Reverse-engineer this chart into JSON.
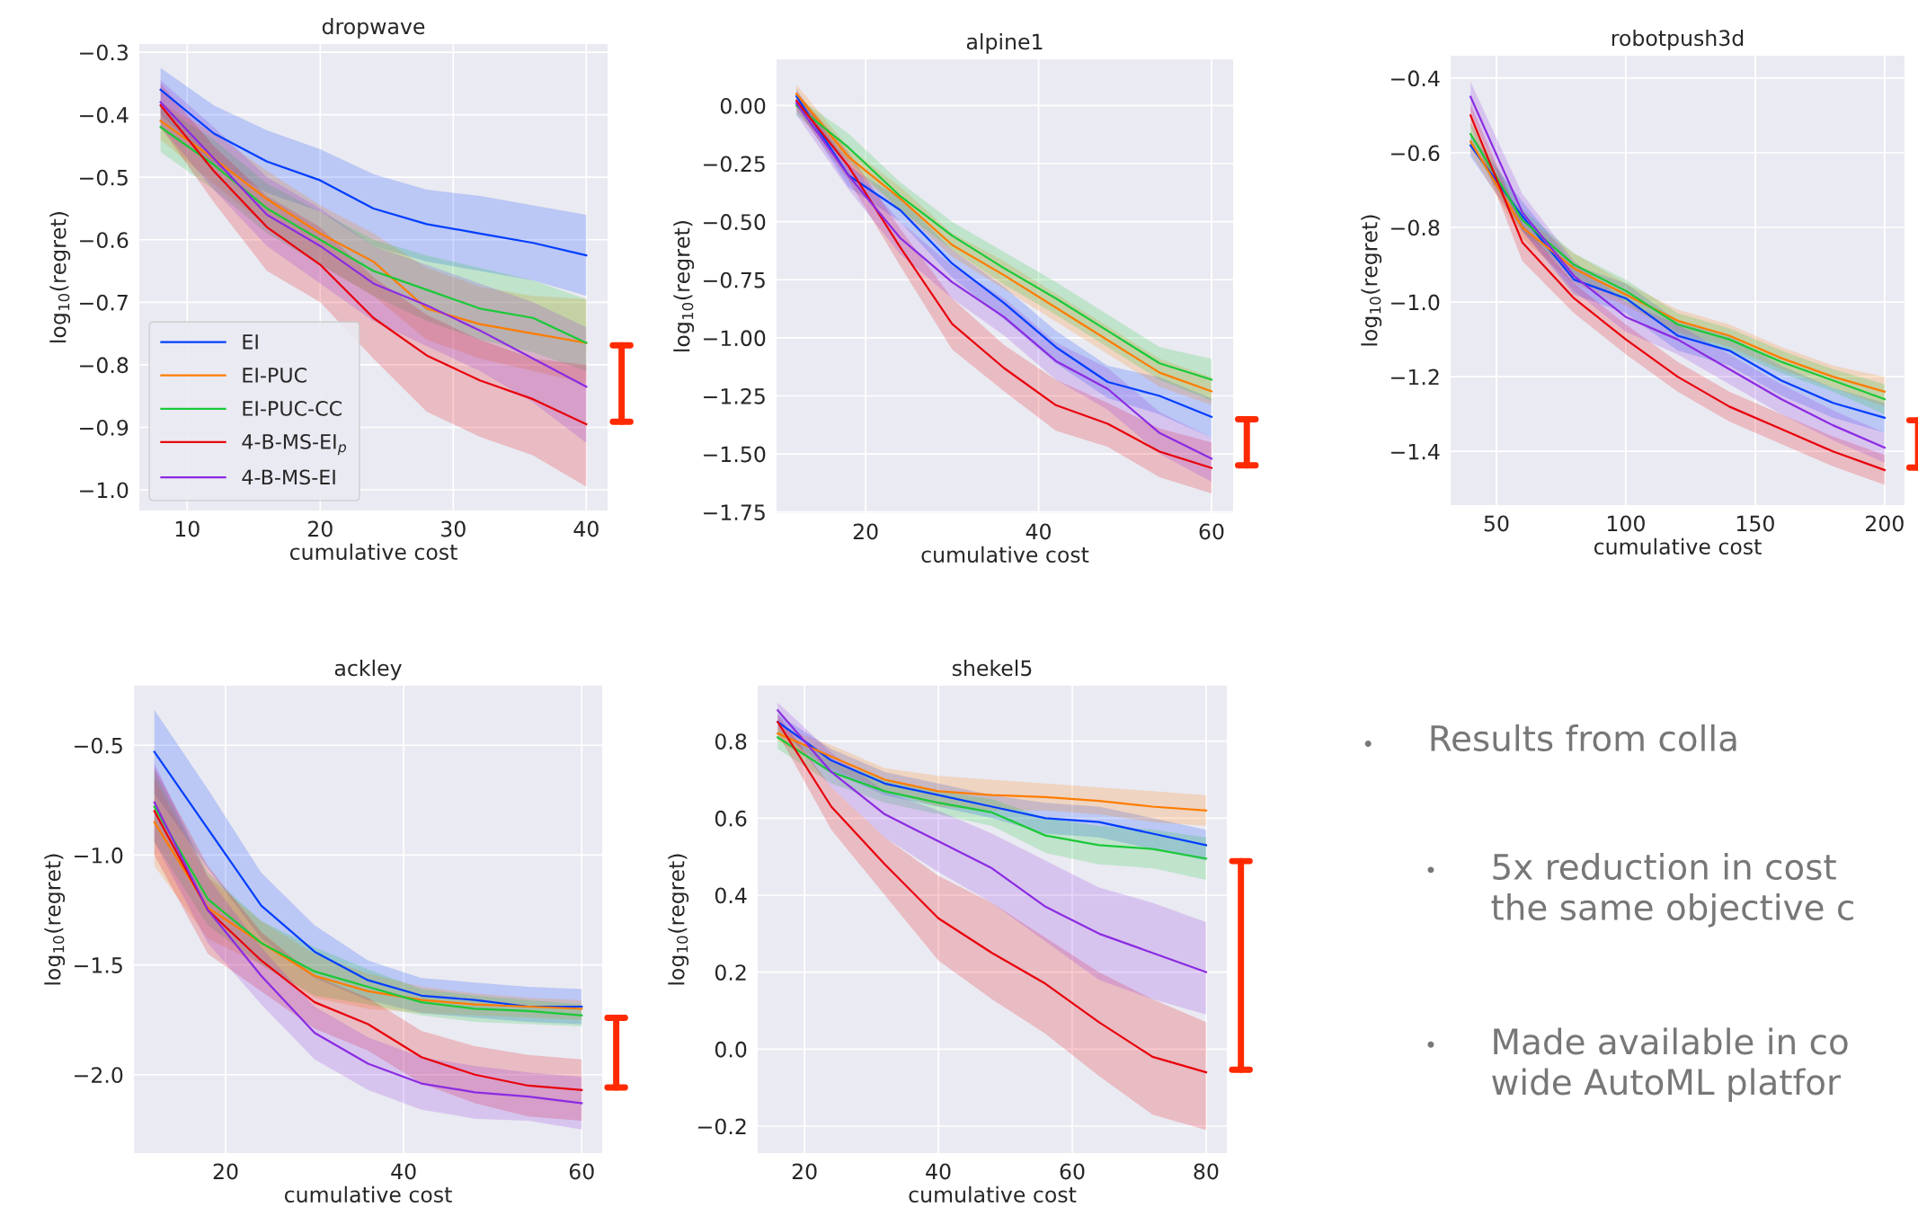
{
  "chart_data": [
    {
      "type": "line",
      "title": "dropwave",
      "xlabel": "cumulative cost",
      "ylabel": "log$_{10}$(regret)",
      "xlim": [
        6.4,
        41.6
      ],
      "ylim": [
        -1.033,
        -0.287
      ],
      "xticks": [
        10,
        20,
        30,
        40
      ],
      "yticks": [
        {
          "value": -0.3,
          "label": "−0.3"
        },
        {
          "value": -0.4,
          "label": "−0.4"
        },
        {
          "value": -0.5,
          "label": "−0.5"
        },
        {
          "value": -0.6,
          "label": "−0.6"
        },
        {
          "value": -0.7,
          "label": "−0.7"
        },
        {
          "value": -0.8,
          "label": "−0.8"
        },
        {
          "value": -0.9,
          "label": "−0.9"
        },
        {
          "value": -1.0,
          "label": "−1.0"
        }
      ],
      "grid": true,
      "legend": "bottom left",
      "x": [
        8,
        12,
        16,
        20,
        24,
        28,
        32,
        36,
        40
      ],
      "series": [
        {
          "name": "EI",
          "color": "#023eff",
          "values": [
            -0.36,
            -0.43,
            -0.475,
            -0.505,
            -0.55,
            -0.575,
            -0.59,
            -0.605,
            -0.625
          ],
          "upper": [
            -0.325,
            -0.385,
            -0.425,
            -0.455,
            -0.495,
            -0.52,
            -0.53,
            -0.545,
            -0.56
          ],
          "lower": [
            -0.4,
            -0.48,
            -0.525,
            -0.555,
            -0.61,
            -0.635,
            -0.65,
            -0.665,
            -0.69
          ]
        },
        {
          "name": "EI-PUC",
          "color": "#ff7c00",
          "values": [
            -0.41,
            -0.47,
            -0.535,
            -0.59,
            -0.635,
            -0.71,
            -0.735,
            -0.75,
            -0.765
          ],
          "upper": [
            -0.38,
            -0.43,
            -0.49,
            -0.545,
            -0.59,
            -0.645,
            -0.675,
            -0.69,
            -0.695
          ],
          "lower": [
            -0.44,
            -0.51,
            -0.58,
            -0.64,
            -0.69,
            -0.76,
            -0.79,
            -0.81,
            -0.83
          ]
        },
        {
          "name": "EI-PUC-CC",
          "color": "#1ac938",
          "values": [
            -0.42,
            -0.48,
            -0.55,
            -0.6,
            -0.65,
            -0.68,
            -0.71,
            -0.725,
            -0.765
          ],
          "upper": [
            -0.385,
            -0.44,
            -0.51,
            -0.555,
            -0.6,
            -0.625,
            -0.645,
            -0.665,
            -0.695
          ],
          "lower": [
            -0.46,
            -0.52,
            -0.59,
            -0.64,
            -0.69,
            -0.73,
            -0.76,
            -0.78,
            -0.81
          ]
        },
        {
          "name": "4-B-MS-EI$_{p}$",
          "color": "#e8000b",
          "values": [
            -0.385,
            -0.49,
            -0.58,
            -0.64,
            -0.725,
            -0.785,
            -0.825,
            -0.855,
            -0.895
          ],
          "upper": [
            -0.35,
            -0.45,
            -0.53,
            -0.58,
            -0.66,
            -0.72,
            -0.76,
            -0.79,
            -0.8
          ],
          "lower": [
            -0.42,
            -0.54,
            -0.65,
            -0.7,
            -0.79,
            -0.875,
            -0.915,
            -0.945,
            -0.995
          ]
        },
        {
          "name": "4-B-MS-EI",
          "color": "#8b2be2",
          "values": [
            -0.38,
            -0.47,
            -0.56,
            -0.61,
            -0.67,
            -0.705,
            -0.745,
            -0.79,
            -0.835
          ],
          "upper": [
            -0.345,
            -0.42,
            -0.5,
            -0.55,
            -0.61,
            -0.64,
            -0.67,
            -0.7,
            -0.74
          ],
          "lower": [
            -0.42,
            -0.52,
            -0.61,
            -0.67,
            -0.73,
            -0.77,
            -0.81,
            -0.86,
            -0.925
          ]
        }
      ]
    },
    {
      "type": "line",
      "title": "alpine1",
      "xlabel": "cumulative cost",
      "ylabel": "log$_{10}$(regret)",
      "xlim": [
        9.7,
        62.5
      ],
      "ylim": [
        -1.755,
        0.199
      ],
      "xticks": [
        20,
        40,
        60
      ],
      "yticks": [
        {
          "value": 0,
          "label": "0.00"
        },
        {
          "value": -0.25,
          "label": "−0.25"
        },
        {
          "value": -0.5,
          "label": "−0.50"
        },
        {
          "value": -0.75,
          "label": "−0.75"
        },
        {
          "value": -1.0,
          "label": "−1.00"
        },
        {
          "value": -1.25,
          "label": "−1.25"
        },
        {
          "value": -1.5,
          "label": "−1.50"
        },
        {
          "value": -1.75,
          "label": "−1.75"
        }
      ],
      "grid": true,
      "x": [
        12,
        18,
        24,
        30,
        36,
        42,
        48,
        54,
        60
      ],
      "series": [
        {
          "color": "#023eff",
          "values": [
            0.04,
            -0.3,
            -0.45,
            -0.68,
            -0.85,
            -1.04,
            -1.19,
            -1.25,
            -1.34
          ],
          "upper": [
            0.07,
            -0.26,
            -0.4,
            -0.62,
            -0.78,
            -0.97,
            -1.12,
            -1.17,
            -1.26
          ],
          "lower": [
            0.0,
            -0.35,
            -0.5,
            -0.74,
            -0.92,
            -1.11,
            -1.26,
            -1.33,
            -1.43
          ]
        },
        {
          "color": "#ff7c00",
          "values": [
            0.05,
            -0.22,
            -0.4,
            -0.6,
            -0.73,
            -0.87,
            -1.01,
            -1.15,
            -1.23
          ],
          "upper": [
            0.09,
            -0.18,
            -0.35,
            -0.55,
            -0.67,
            -0.81,
            -0.95,
            -1.09,
            -1.17
          ],
          "lower": [
            0.01,
            -0.26,
            -0.45,
            -0.65,
            -0.79,
            -0.93,
            -1.07,
            -1.21,
            -1.29
          ]
        },
        {
          "color": "#1ac938",
          "values": [
            0.0,
            -0.18,
            -0.39,
            -0.56,
            -0.7,
            -0.83,
            -0.97,
            -1.11,
            -1.18
          ],
          "upper": [
            0.04,
            -0.12,
            -0.33,
            -0.5,
            -0.63,
            -0.76,
            -0.9,
            -1.04,
            -1.09
          ],
          "lower": [
            -0.04,
            -0.24,
            -0.45,
            -0.62,
            -0.77,
            -0.9,
            -1.04,
            -1.18,
            -1.27
          ]
        },
        {
          "color": "#e8000b",
          "values": [
            0.02,
            -0.26,
            -0.61,
            -0.94,
            -1.13,
            -1.29,
            -1.37,
            -1.49,
            -1.56
          ],
          "upper": [
            0.06,
            -0.2,
            -0.53,
            -0.83,
            -1.03,
            -1.18,
            -1.28,
            -1.39,
            -1.45
          ],
          "lower": [
            -0.02,
            -0.32,
            -0.69,
            -1.05,
            -1.23,
            -1.4,
            -1.47,
            -1.6,
            -1.67
          ]
        },
        {
          "color": "#8b2be2",
          "values": [
            0.01,
            -0.3,
            -0.57,
            -0.76,
            -0.91,
            -1.1,
            -1.22,
            -1.41,
            -1.52
          ],
          "upper": [
            0.05,
            -0.24,
            -0.5,
            -0.69,
            -0.83,
            -1.02,
            -1.13,
            -1.32,
            -1.43
          ],
          "lower": [
            -0.04,
            -0.36,
            -0.64,
            -0.83,
            -0.99,
            -1.18,
            -1.31,
            -1.5,
            -1.62
          ]
        }
      ]
    },
    {
      "type": "line",
      "title": "robotpush3d",
      "xlabel": "cumulative cost",
      "ylabel": "log$_{10}$(regret)",
      "xlim": [
        32.3,
        207.7
      ],
      "ylim": [
        -1.544,
        -0.34
      ],
      "xticks": [
        50,
        100,
        150,
        200
      ],
      "yticks": [
        {
          "value": -0.4,
          "label": "−0.4"
        },
        {
          "value": -0.6,
          "label": "−0.6"
        },
        {
          "value": -0.8,
          "label": "−0.8"
        },
        {
          "value": -1.0,
          "label": "−1.0"
        },
        {
          "value": -1.2,
          "label": "−1.2"
        },
        {
          "value": -1.4,
          "label": "−1.4"
        }
      ],
      "grid": true,
      "x": [
        40,
        60,
        80,
        100,
        120,
        140,
        160,
        180,
        200
      ],
      "series": [
        {
          "color": "#023eff",
          "values": [
            -0.58,
            -0.77,
            -0.94,
            -0.99,
            -1.09,
            -1.13,
            -1.21,
            -1.27,
            -1.31
          ],
          "upper": [
            -0.55,
            -0.73,
            -0.9,
            -0.95,
            -1.05,
            -1.09,
            -1.17,
            -1.23,
            -1.27
          ],
          "lower": [
            -0.61,
            -0.81,
            -0.98,
            -1.03,
            -1.13,
            -1.17,
            -1.25,
            -1.31,
            -1.35
          ]
        },
        {
          "color": "#ff7c00",
          "values": [
            -0.57,
            -0.8,
            -0.91,
            -0.98,
            -1.05,
            -1.09,
            -1.15,
            -1.2,
            -1.24
          ],
          "upper": [
            -0.54,
            -0.77,
            -0.87,
            -0.95,
            -1.02,
            -1.06,
            -1.12,
            -1.17,
            -1.2
          ],
          "lower": [
            -0.6,
            -0.83,
            -0.95,
            -1.01,
            -1.08,
            -1.12,
            -1.18,
            -1.23,
            -1.28
          ]
        },
        {
          "color": "#1ac938",
          "values": [
            -0.55,
            -0.78,
            -0.9,
            -0.97,
            -1.06,
            -1.1,
            -1.16,
            -1.21,
            -1.26
          ],
          "upper": [
            -0.52,
            -0.75,
            -0.87,
            -0.94,
            -1.03,
            -1.07,
            -1.13,
            -1.18,
            -1.22
          ],
          "lower": [
            -0.58,
            -0.81,
            -0.93,
            -1.0,
            -1.09,
            -1.13,
            -1.19,
            -1.24,
            -1.3
          ]
        },
        {
          "color": "#e8000b",
          "values": [
            -0.5,
            -0.84,
            -0.99,
            -1.1,
            -1.2,
            -1.28,
            -1.34,
            -1.4,
            -1.45
          ],
          "upper": [
            -0.47,
            -0.79,
            -0.95,
            -1.06,
            -1.16,
            -1.24,
            -1.3,
            -1.36,
            -1.41
          ],
          "lower": [
            -0.53,
            -0.89,
            -1.03,
            -1.14,
            -1.24,
            -1.32,
            -1.38,
            -1.44,
            -1.49
          ]
        },
        {
          "color": "#8b2be2",
          "values": [
            -0.45,
            -0.76,
            -0.93,
            -1.04,
            -1.1,
            -1.18,
            -1.26,
            -1.33,
            -1.39
          ],
          "upper": [
            -0.41,
            -0.71,
            -0.89,
            -1.0,
            -1.06,
            -1.14,
            -1.22,
            -1.29,
            -1.35
          ],
          "lower": [
            -0.49,
            -0.81,
            -0.97,
            -1.08,
            -1.14,
            -1.22,
            -1.3,
            -1.37,
            -1.43
          ]
        }
      ]
    },
    {
      "type": "line",
      "title": "ackley",
      "xlabel": "cumulative cost",
      "ylabel": "log$_{10}$(regret)",
      "xlim": [
        9.7,
        62.3
      ],
      "ylim": [
        -2.357,
        -0.229
      ],
      "xticks": [
        20,
        40,
        60
      ],
      "yticks": [
        {
          "value": -0.5,
          "label": "−0.5"
        },
        {
          "value": -1.0,
          "label": "−1.0"
        },
        {
          "value": -1.5,
          "label": "−1.5"
        },
        {
          "value": -2.0,
          "label": "−2.0"
        }
      ],
      "grid": true,
      "x": [
        12,
        18,
        24,
        30,
        36,
        42,
        48,
        54,
        60
      ],
      "series": [
        {
          "color": "#023eff",
          "values": [
            -0.53,
            -0.88,
            -1.23,
            -1.44,
            -1.57,
            -1.64,
            -1.66,
            -1.69,
            -1.69
          ],
          "upper": [
            -0.34,
            -0.7,
            -1.08,
            -1.32,
            -1.48,
            -1.56,
            -1.58,
            -1.6,
            -1.61
          ],
          "lower": [
            -0.72,
            -1.06,
            -1.38,
            -1.56,
            -1.66,
            -1.72,
            -1.74,
            -1.76,
            -1.77
          ]
        },
        {
          "color": "#ff7c00",
          "values": [
            -0.85,
            -1.24,
            -1.4,
            -1.55,
            -1.62,
            -1.66,
            -1.68,
            -1.69,
            -1.7
          ],
          "upper": [
            -0.65,
            -1.1,
            -1.3,
            -1.45,
            -1.54,
            -1.6,
            -1.63,
            -1.65,
            -1.66
          ],
          "lower": [
            -1.05,
            -1.38,
            -1.5,
            -1.65,
            -1.7,
            -1.72,
            -1.73,
            -1.74,
            -1.75
          ]
        },
        {
          "color": "#1ac938",
          "values": [
            -0.78,
            -1.2,
            -1.4,
            -1.53,
            -1.6,
            -1.67,
            -1.7,
            -1.71,
            -1.73
          ],
          "upper": [
            -0.62,
            -1.08,
            -1.3,
            -1.42,
            -1.52,
            -1.61,
            -1.64,
            -1.66,
            -1.68
          ],
          "lower": [
            -0.94,
            -1.32,
            -1.5,
            -1.64,
            -1.68,
            -1.73,
            -1.76,
            -1.77,
            -1.78
          ]
        },
        {
          "color": "#e8000b",
          "values": [
            -0.8,
            -1.25,
            -1.48,
            -1.67,
            -1.77,
            -1.92,
            -2.0,
            -2.05,
            -2.07
          ],
          "upper": [
            -0.6,
            -1.05,
            -1.35,
            -1.55,
            -1.65,
            -1.8,
            -1.87,
            -1.91,
            -1.93
          ],
          "lower": [
            -1.0,
            -1.45,
            -1.62,
            -1.79,
            -1.89,
            -2.04,
            -2.13,
            -2.19,
            -2.21
          ]
        },
        {
          "color": "#8b2be2",
          "values": [
            -0.76,
            -1.25,
            -1.55,
            -1.81,
            -1.95,
            -2.04,
            -2.08,
            -2.1,
            -2.13
          ],
          "upper": [
            -0.58,
            -1.1,
            -1.42,
            -1.69,
            -1.83,
            -1.92,
            -1.96,
            -1.99,
            -2.01
          ],
          "lower": [
            -0.94,
            -1.4,
            -1.68,
            -1.93,
            -2.07,
            -2.16,
            -2.2,
            -2.21,
            -2.25
          ]
        }
      ]
    },
    {
      "type": "line",
      "title": "shekel5",
      "xlabel": "cumulative cost",
      "ylabel": "log$_{10}$(regret)",
      "xlim": [
        13.0,
        83.1
      ],
      "ylim": [
        -0.27,
        0.944
      ],
      "xticks": [
        20,
        40,
        60,
        80
      ],
      "yticks": [
        {
          "value": -0.2,
          "label": "−0.2"
        },
        {
          "value": 0.0,
          "label": "0.0"
        },
        0.2,
        0.4,
        0.6,
        0.8
      ],
      "grid": true,
      "x": [
        16,
        24,
        32,
        40,
        48,
        56,
        64,
        72,
        80
      ],
      "series": [
        {
          "color": "#023eff",
          "values": [
            0.85,
            0.75,
            0.69,
            0.66,
            0.63,
            0.6,
            0.59,
            0.56,
            0.53
          ],
          "upper": [
            0.87,
            0.78,
            0.72,
            0.69,
            0.66,
            0.64,
            0.63,
            0.6,
            0.57
          ],
          "lower": [
            0.83,
            0.72,
            0.66,
            0.63,
            0.6,
            0.56,
            0.55,
            0.52,
            0.49
          ]
        },
        {
          "color": "#ff7c00",
          "values": [
            0.82,
            0.76,
            0.7,
            0.67,
            0.66,
            0.655,
            0.645,
            0.63,
            0.62
          ],
          "upper": [
            0.84,
            0.79,
            0.73,
            0.71,
            0.7,
            0.69,
            0.68,
            0.67,
            0.66
          ],
          "lower": [
            0.8,
            0.73,
            0.67,
            0.63,
            0.62,
            0.62,
            0.61,
            0.59,
            0.58
          ]
        },
        {
          "color": "#1ac938",
          "values": [
            0.81,
            0.72,
            0.67,
            0.64,
            0.615,
            0.555,
            0.53,
            0.52,
            0.495
          ],
          "upper": [
            0.83,
            0.75,
            0.7,
            0.67,
            0.65,
            0.6,
            0.58,
            0.57,
            0.55
          ],
          "lower": [
            0.78,
            0.69,
            0.64,
            0.61,
            0.58,
            0.51,
            0.48,
            0.47,
            0.44
          ]
        },
        {
          "color": "#e8000b",
          "values": [
            0.85,
            0.63,
            0.48,
            0.34,
            0.25,
            0.17,
            0.07,
            -0.02,
            -0.06
          ],
          "upper": [
            0.87,
            0.68,
            0.55,
            0.45,
            0.38,
            0.29,
            0.2,
            0.13,
            0.07
          ],
          "lower": [
            0.82,
            0.57,
            0.4,
            0.23,
            0.13,
            0.04,
            -0.07,
            -0.17,
            -0.21
          ]
        },
        {
          "color": "#8b2be2",
          "values": [
            0.88,
            0.72,
            0.61,
            0.54,
            0.47,
            0.37,
            0.3,
            0.25,
            0.2
          ],
          "upper": [
            0.9,
            0.77,
            0.67,
            0.62,
            0.56,
            0.49,
            0.42,
            0.38,
            0.33
          ],
          "lower": [
            0.85,
            0.68,
            0.55,
            0.46,
            0.38,
            0.28,
            0.18,
            0.13,
            0.09
          ]
        }
      ]
    },
    {
      "type": "other",
      "annotations": [
        "Results from colla",
        "5x reduction in cost\nthe same objective c",
        "Made available in co\nwide AutoML platfor"
      ]
    }
  ]
}
